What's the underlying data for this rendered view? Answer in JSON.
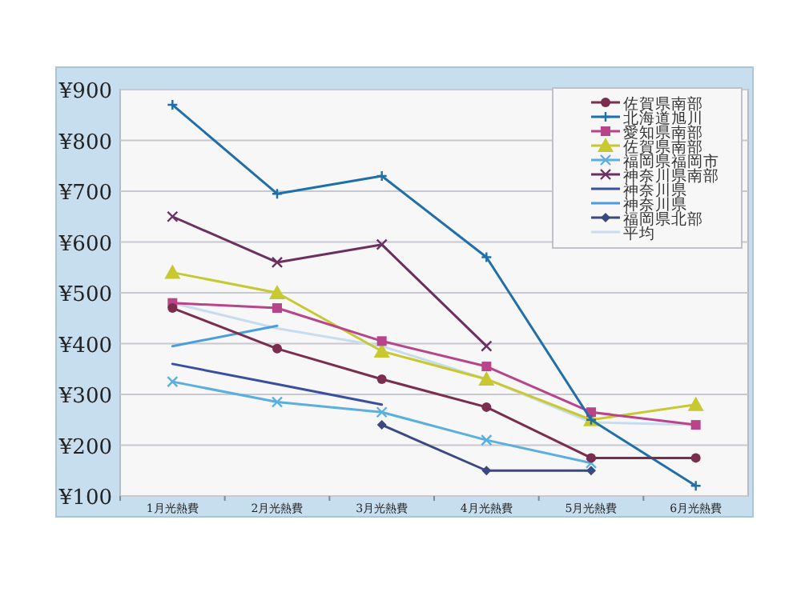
{
  "chart_data": {
    "type": "line",
    "categories": [
      "1月光熱費",
      "2月光熱費",
      "3月光熱費",
      "4月光熱費",
      "5月光熱費",
      "6月光熱費"
    ],
    "ylim": [
      100,
      900
    ],
    "yticks": [
      {
        "value": 100,
        "label": "¥100"
      },
      {
        "value": 200,
        "label": "¥200"
      },
      {
        "value": 300,
        "label": "¥300"
      },
      {
        "value": 400,
        "label": "¥400"
      },
      {
        "value": 500,
        "label": "¥500"
      },
      {
        "value": 600,
        "label": "¥600"
      },
      {
        "value": 700,
        "label": "¥700"
      },
      {
        "value": 800,
        "label": "¥800"
      },
      {
        "value": 900,
        "label": "¥900"
      }
    ],
    "grid": "y",
    "legend": "top right",
    "series": [
      {
        "name": "佐賀県南部",
        "color": "#7b2d4e",
        "marker": "circle",
        "values": [
          470,
          390,
          330,
          275,
          175,
          175
        ]
      },
      {
        "name": "北海道旭川",
        "color": "#1f6fa8",
        "marker": "plus",
        "values": [
          870,
          695,
          730,
          570,
          250,
          120
        ]
      },
      {
        "name": "愛知県南部",
        "color": "#b8448a",
        "marker": "square",
        "values": [
          480,
          470,
          405,
          355,
          265,
          240
        ]
      },
      {
        "name": "佐賀県南部",
        "color": "#c8c830",
        "marker": "triangle",
        "values": [
          540,
          500,
          385,
          330,
          250,
          280
        ]
      },
      {
        "name": "福岡県福岡市",
        "color": "#5aaee0",
        "marker": "cross",
        "values": [
          325,
          285,
          265,
          210,
          165,
          null
        ]
      },
      {
        "name": "神奈川県南部",
        "color": "#6b3060",
        "marker": "cross",
        "values": [
          650,
          560,
          595,
          395,
          null,
          null
        ]
      },
      {
        "name": "神奈川県",
        "color": "#3a4fa0",
        "marker": "none",
        "values": [
          360,
          320,
          280,
          null,
          null,
          null
        ]
      },
      {
        "name": "神奈川県",
        "color": "#4a9de0",
        "marker": "none",
        "values": [
          395,
          435,
          null,
          null,
          null,
          null
        ]
      },
      {
        "name": "福岡県北部",
        "color": "#3a4a80",
        "marker": "diamond",
        "values": [
          null,
          null,
          240,
          150,
          150,
          null
        ]
      },
      {
        "name": "平均",
        "color": "#c8dcf0",
        "marker": "none",
        "values": [
          480,
          430,
          395,
          330,
          245,
          240
        ]
      }
    ]
  }
}
